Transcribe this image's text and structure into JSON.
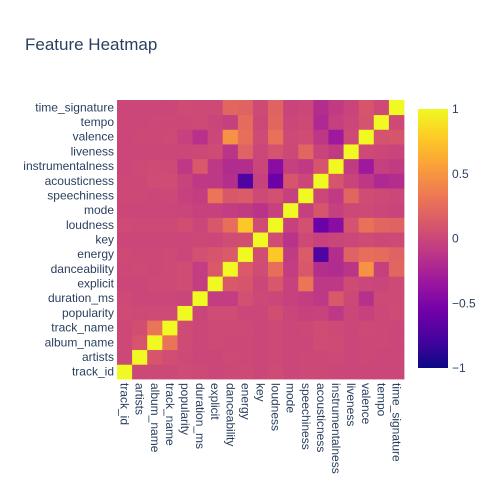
{
  "chart_data": {
    "type": "heatmap",
    "title": "Feature Heatmap",
    "x": [
      "track_id",
      "artists",
      "album_name",
      "track_name",
      "popularity",
      "duration_ms",
      "explicit",
      "danceability",
      "energy",
      "key",
      "loudness",
      "mode",
      "speechiness",
      "acousticness",
      "instrumentalness",
      "liveness",
      "valence",
      "tempo",
      "time_signature"
    ],
    "y": [
      "track_id",
      "artists",
      "album_name",
      "track_name",
      "popularity",
      "duration_ms",
      "explicit",
      "danceability",
      "energy",
      "key",
      "loudness",
      "mode",
      "speechiness",
      "acousticness",
      "instrumentalness",
      "liveness",
      "valence",
      "tempo",
      "time_signature"
    ],
    "zrange": [
      -1,
      1
    ],
    "colorscale": [
      "#0d0887",
      "#46039f",
      "#7201a8",
      "#9c179e",
      "#bd3786",
      "#d8576b",
      "#ed7953",
      "#fb9f3a",
      "#fdca26",
      "#f0f921"
    ],
    "colorbar_ticks": [
      {
        "value": 1,
        "label": "1"
      },
      {
        "value": 0.5,
        "label": "0.5"
      },
      {
        "value": 0,
        "label": "0"
      },
      {
        "value": -0.5,
        "label": "−0.5"
      },
      {
        "value": -1,
        "label": "−1"
      }
    ],
    "z": [
      [
        1.0,
        0.01,
        0.01,
        0.01,
        0.03,
        0.02,
        0.0,
        0.01,
        0.02,
        0.0,
        0.03,
        0.0,
        0.01,
        0.01,
        0.0,
        0.0,
        0.0,
        0.0,
        0.0
      ],
      [
        0.01,
        1.0,
        0.1,
        0.05,
        0.02,
        0.0,
        0.0,
        0.02,
        0.01,
        0.0,
        0.02,
        0.0,
        0.01,
        0.01,
        0.02,
        0.0,
        0.01,
        0.0,
        0.0
      ],
      [
        0.01,
        0.1,
        1.0,
        0.3,
        0.03,
        0.0,
        0.02,
        0.01,
        0.01,
        0.0,
        0.02,
        0.0,
        0.0,
        0.04,
        0.03,
        0.0,
        0.01,
        0.01,
        0.0
      ],
      [
        0.01,
        0.05,
        0.3,
        1.0,
        0.03,
        0.0,
        0.02,
        0.02,
        0.02,
        0.0,
        0.02,
        0.0,
        0.01,
        0.04,
        0.02,
        0.0,
        0.02,
        0.01,
        0.0
      ],
      [
        0.03,
        0.02,
        0.03,
        0.03,
        1.0,
        -0.01,
        0.04,
        0.04,
        0.0,
        0.0,
        0.05,
        -0.01,
        -0.04,
        -0.03,
        -0.1,
        0.0,
        -0.04,
        0.01,
        0.03
      ],
      [
        0.02,
        0.0,
        0.0,
        0.0,
        -0.01,
        1.0,
        -0.07,
        -0.07,
        0.06,
        0.01,
        0.0,
        -0.04,
        -0.06,
        -0.1,
        0.12,
        0.01,
        -0.15,
        0.02,
        0.02
      ],
      [
        0.0,
        0.0,
        0.02,
        0.02,
        0.04,
        -0.07,
        1.0,
        0.12,
        0.1,
        0.0,
        0.11,
        -0.04,
        0.31,
        -0.1,
        -0.1,
        0.03,
        0.0,
        -0.01,
        0.02
      ],
      [
        0.01,
        0.02,
        0.01,
        0.02,
        0.04,
        -0.07,
        0.12,
        1.0,
        0.13,
        0.04,
        0.26,
        -0.07,
        0.11,
        -0.17,
        -0.19,
        -0.13,
        0.48,
        -0.05,
        0.21
      ],
      [
        0.02,
        0.01,
        0.01,
        0.02,
        0.0,
        0.06,
        0.1,
        0.13,
        1.0,
        0.05,
        0.76,
        -0.08,
        0.14,
        -0.73,
        -0.18,
        0.18,
        0.26,
        0.25,
        0.19
      ],
      [
        0.0,
        0.0,
        0.0,
        0.0,
        0.0,
        0.01,
        0.0,
        0.04,
        0.05,
        1.0,
        0.04,
        -0.14,
        0.02,
        -0.04,
        -0.01,
        0.0,
        0.03,
        0.01,
        0.02
      ],
      [
        0.03,
        0.02,
        0.02,
        0.02,
        0.05,
        0.0,
        0.11,
        0.26,
        0.76,
        0.04,
        1.0,
        -0.04,
        0.06,
        -0.59,
        -0.43,
        0.08,
        0.28,
        0.21,
        0.19
      ],
      [
        0.0,
        0.0,
        0.0,
        0.0,
        -0.01,
        -0.04,
        -0.04,
        -0.07,
        -0.08,
        -0.14,
        -0.04,
        1.0,
        -0.05,
        0.1,
        -0.05,
        0.01,
        0.02,
        0.0,
        -0.02
      ],
      [
        0.01,
        0.01,
        0.0,
        0.01,
        -0.04,
        -0.06,
        0.31,
        0.11,
        0.14,
        0.02,
        0.06,
        -0.05,
        1.0,
        0.0,
        -0.09,
        0.21,
        0.04,
        0.02,
        0.0
      ],
      [
        0.01,
        0.01,
        0.04,
        0.04,
        -0.03,
        -0.1,
        -0.1,
        -0.17,
        -0.73,
        -0.04,
        -0.59,
        0.1,
        0.0,
        1.0,
        0.1,
        -0.02,
        -0.11,
        -0.21,
        -0.18
      ],
      [
        0.0,
        0.02,
        0.03,
        0.02,
        -0.1,
        0.12,
        -0.1,
        -0.19,
        -0.18,
        -0.01,
        -0.43,
        -0.05,
        -0.09,
        0.1,
        1.0,
        -0.08,
        -0.32,
        -0.05,
        -0.08
      ],
      [
        0.0,
        0.0,
        0.0,
        0.0,
        0.0,
        0.01,
        0.03,
        -0.13,
        0.18,
        0.0,
        0.08,
        0.01,
        0.21,
        -0.02,
        -0.08,
        1.0,
        0.02,
        0.0,
        -0.02
      ],
      [
        0.0,
        0.01,
        0.01,
        0.02,
        -0.04,
        -0.15,
        0.0,
        0.48,
        0.26,
        0.03,
        0.28,
        0.02,
        0.04,
        -0.11,
        -0.32,
        0.02,
        1.0,
        0.08,
        0.1
      ],
      [
        0.0,
        0.0,
        0.01,
        0.01,
        0.01,
        0.02,
        -0.01,
        -0.05,
        0.25,
        0.01,
        0.21,
        0.0,
        0.02,
        -0.21,
        -0.05,
        0.0,
        0.08,
        1.0,
        0.02
      ],
      [
        0.0,
        0.0,
        0.0,
        0.0,
        0.03,
        0.02,
        0.02,
        0.21,
        0.19,
        0.02,
        0.19,
        -0.02,
        0.0,
        -0.18,
        -0.08,
        -0.02,
        0.1,
        0.02,
        1.0
      ]
    ]
  }
}
